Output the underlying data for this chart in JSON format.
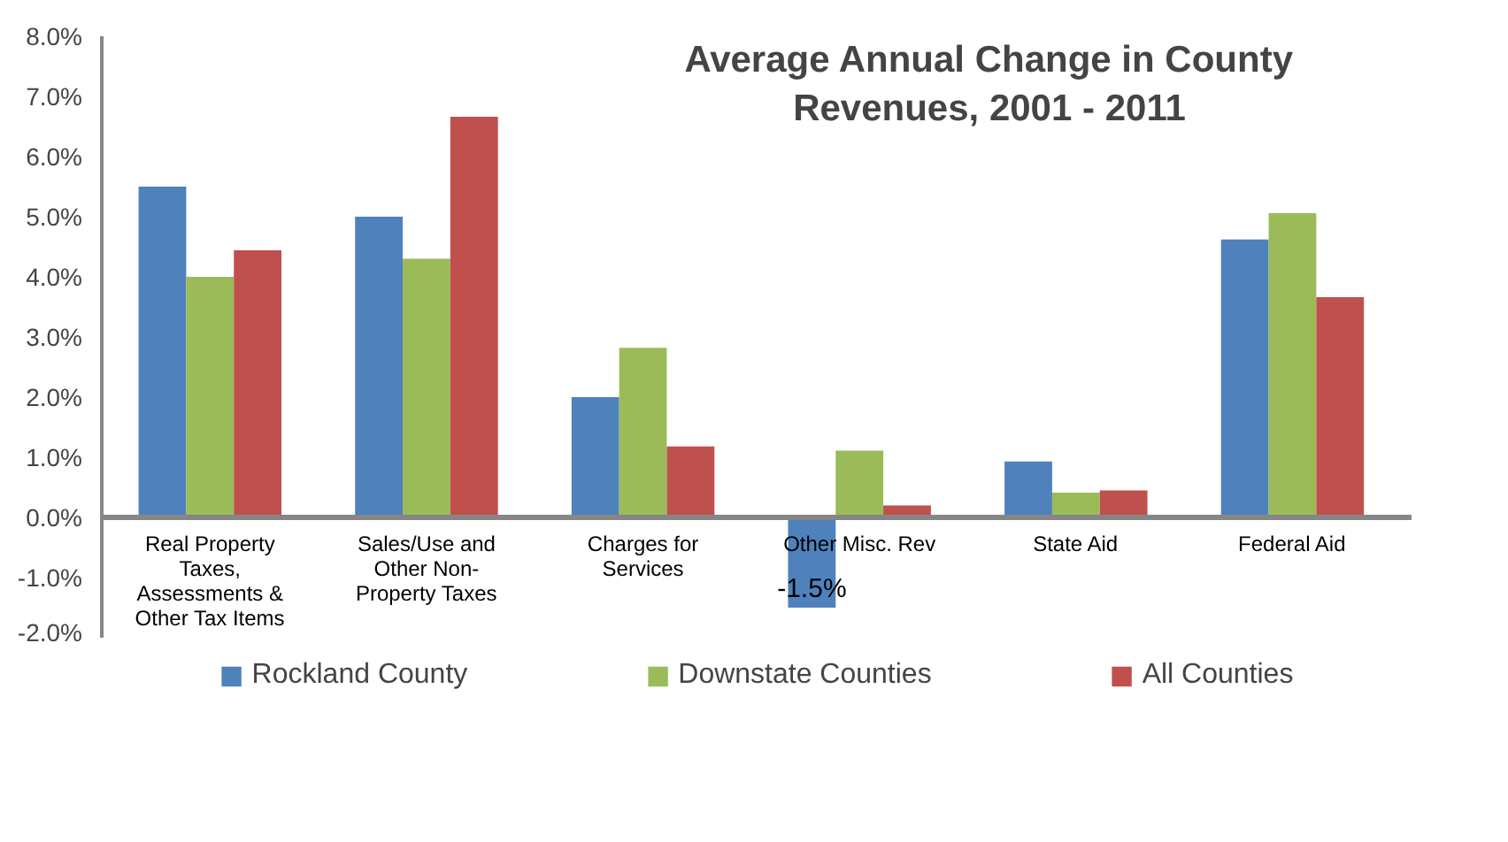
{
  "chart_data": {
    "type": "bar",
    "title": "Average Annual Change in County Revenues, 2001 - 2011",
    "categories": [
      "Real Property Taxes, Assessments & Other Tax Items",
      "Sales/Use and Other Non-Property Taxes",
      "Charges for Services",
      "Other Misc. Rev",
      "State Aid",
      "Federal Aid"
    ],
    "series": [
      {
        "name": "Rockland County",
        "color": "#4f81bd",
        "values": [
          5.5,
          5.0,
          2.0,
          -1.5,
          0.93,
          4.62
        ],
        "value_labels": [
          null,
          null,
          null,
          "-1.5%",
          null,
          null
        ]
      },
      {
        "name": "Downstate Counties",
        "color": "#9bbb59",
        "values": [
          4.0,
          4.3,
          2.82,
          1.11,
          0.41,
          5.06
        ]
      },
      {
        "name": "All Counties",
        "color": "#c0504d",
        "values": [
          4.44,
          6.66,
          1.18,
          0.2,
          0.45,
          3.66
        ]
      }
    ],
    "ylim": [
      -2,
      8
    ],
    "yticks": [
      {
        "value": 8,
        "label": "8.0%"
      },
      {
        "value": 7,
        "label": "7.0%"
      },
      {
        "value": 6,
        "label": "6.0%"
      },
      {
        "value": 5,
        "label": "5.0%"
      },
      {
        "value": 4,
        "label": "4.0%"
      },
      {
        "value": 3,
        "label": "3.0%"
      },
      {
        "value": 2,
        "label": "2.0%"
      },
      {
        "value": 1,
        "label": "1.0%"
      },
      {
        "value": 0,
        "label": "0.0%"
      },
      {
        "value": -1,
        "label": "-1.0%"
      },
      {
        "value": -2,
        "label": "-2.0%"
      }
    ],
    "grid": false,
    "legend": "bottom"
  }
}
